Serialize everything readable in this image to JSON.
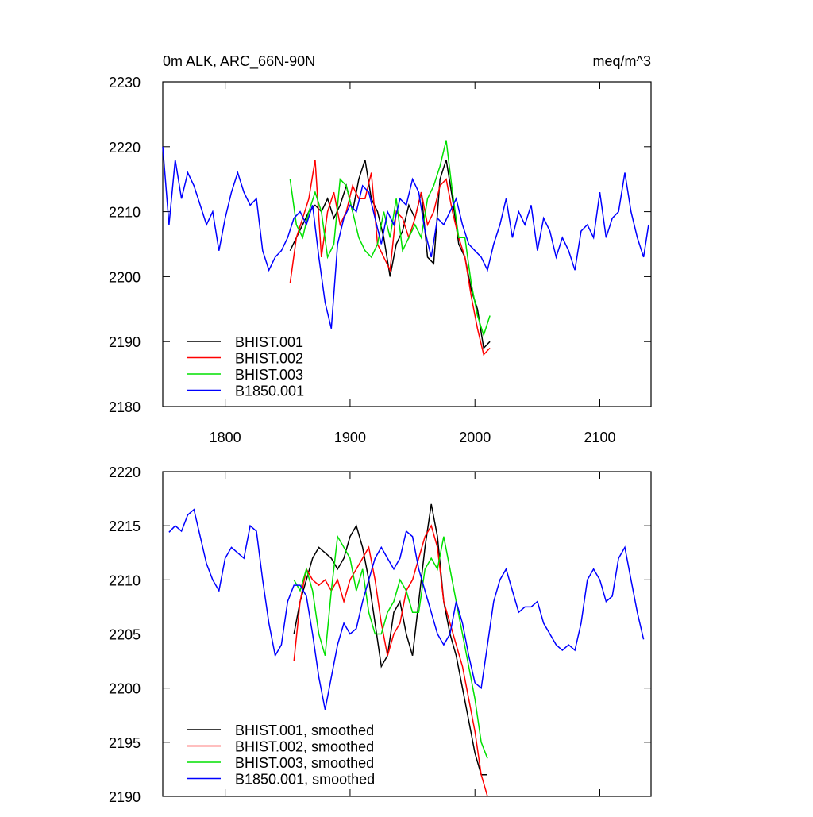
{
  "chart_data": [
    {
      "type": "line",
      "title": "0m ALK, ARC_66N-90N",
      "units": "meq/m^3",
      "xlim": [
        1750,
        2141
      ],
      "xticks": [
        1800,
        1900,
        2000,
        2100
      ],
      "show_xtick_labels": true,
      "ylim": [
        2180,
        2230
      ],
      "yticks": [
        2180,
        2190,
        2200,
        2210,
        2220,
        2230
      ],
      "legend": "lower left",
      "series": [
        {
          "name": "BHIST.001",
          "color": "#000000",
          "x": [
            1852,
            1857,
            1862,
            1867,
            1872,
            1877,
            1882,
            1887,
            1892,
            1897,
            1902,
            1907,
            1912,
            1917,
            1922,
            1927,
            1932,
            1937,
            1942,
            1947,
            1952,
            1957,
            1962,
            1967,
            1972,
            1977,
            1982,
            1987,
            1992,
            1997,
            2002,
            2007,
            2012
          ],
          "values": [
            2204,
            2206,
            2208,
            2210,
            2211,
            2210,
            2212,
            2209,
            2211,
            2214,
            2210,
            2215,
            2218,
            2212,
            2210,
            2206,
            2200,
            2205,
            2207,
            2211,
            2209,
            2213,
            2203,
            2202,
            2215,
            2218,
            2212,
            2205,
            2203,
            2198,
            2195,
            2189,
            2190
          ]
        },
        {
          "name": "BHIST.002",
          "color": "#ff0000",
          "x": [
            1852,
            1857,
            1862,
            1867,
            1872,
            1877,
            1882,
            1887,
            1892,
            1897,
            1902,
            1907,
            1912,
            1917,
            1922,
            1927,
            1932,
            1937,
            1942,
            1947,
            1952,
            1957,
            1962,
            1967,
            1972,
            1977,
            1982,
            1987,
            1992,
            1997,
            2002,
            2007,
            2012
          ],
          "values": [
            2199,
            2206,
            2209,
            2212,
            2218,
            2203,
            2210,
            2213,
            2208,
            2210,
            2214,
            2212,
            2212,
            2216,
            2205,
            2203,
            2201,
            2210,
            2209,
            2206,
            2209,
            2213,
            2208,
            2210,
            2214,
            2215,
            2210,
            2206,
            2203,
            2197,
            2192,
            2188,
            2189
          ]
        },
        {
          "name": "BHIST.003",
          "color": "#00e000",
          "x": [
            1852,
            1857,
            1862,
            1867,
            1872,
            1877,
            1882,
            1887,
            1892,
            1897,
            1902,
            1907,
            1912,
            1917,
            1922,
            1927,
            1932,
            1937,
            1942,
            1947,
            1952,
            1957,
            1962,
            1967,
            1972,
            1977,
            1982,
            1987,
            1992,
            1997,
            2002,
            2007,
            2012
          ],
          "values": [
            2215,
            2208,
            2206,
            2210,
            2213,
            2210,
            2203,
            2205,
            2215,
            2214,
            2210,
            2206,
            2204,
            2203,
            2205,
            2210,
            2206,
            2212,
            2204,
            2206,
            2208,
            2206,
            2212,
            2214,
            2217,
            2221,
            2213,
            2206,
            2206,
            2199,
            2194,
            2191,
            2194
          ]
        },
        {
          "name": "B1850.001",
          "color": "#0000ff",
          "x": [
            1750,
            1755,
            1760,
            1765,
            1770,
            1775,
            1780,
            1785,
            1790,
            1795,
            1800,
            1805,
            1810,
            1815,
            1820,
            1825,
            1830,
            1835,
            1840,
            1845,
            1850,
            1855,
            1860,
            1865,
            1870,
            1875,
            1880,
            1885,
            1890,
            1895,
            1900,
            1905,
            1910,
            1915,
            1920,
            1925,
            1930,
            1935,
            1940,
            1945,
            1950,
            1955,
            1960,
            1965,
            1970,
            1975,
            1980,
            1985,
            1990,
            1995,
            2000,
            2005,
            2010,
            2015,
            2020,
            2025,
            2030,
            2035,
            2040,
            2045,
            2050,
            2055,
            2060,
            2065,
            2070,
            2075,
            2080,
            2085,
            2090,
            2095,
            2100,
            2105,
            2110,
            2115,
            2120,
            2125,
            2130,
            2135,
            2139
          ],
          "values": [
            2220,
            2208,
            2218,
            2212,
            2216,
            2214,
            2211,
            2208,
            2210,
            2204,
            2209,
            2213,
            2216,
            2213,
            2211,
            2212,
            2204,
            2201,
            2203,
            2204,
            2206,
            2209,
            2210,
            2208,
            2211,
            2203,
            2196,
            2192,
            2205,
            2209,
            2211,
            2210,
            2214,
            2213,
            2209,
            2205,
            2210,
            2208,
            2212,
            2211,
            2215,
            2213,
            2207,
            2203,
            2209,
            2208,
            2210,
            2212,
            2208,
            2205,
            2204,
            2203,
            2201,
            2205,
            2208,
            2212,
            2206,
            2210,
            2208,
            2211,
            2204,
            2209,
            2207,
            2203,
            2206,
            2204,
            2201,
            2207,
            2208,
            2206,
            2213,
            2206,
            2209,
            2210,
            2216,
            2210,
            2206,
            2203,
            2208
          ]
        }
      ]
    },
    {
      "type": "line",
      "xlim": [
        1750,
        2141
      ],
      "xticks": [
        1800,
        1900,
        2000,
        2100
      ],
      "show_xtick_labels": false,
      "ylim": [
        2190,
        2220
      ],
      "yticks": [
        2190,
        2195,
        2200,
        2205,
        2210,
        2215,
        2220
      ],
      "legend": "lower left",
      "series": [
        {
          "name": "BHIST.001, smoothed",
          "color": "#000000",
          "x": [
            1855,
            1860,
            1865,
            1870,
            1875,
            1880,
            1885,
            1890,
            1895,
            1900,
            1905,
            1910,
            1915,
            1920,
            1925,
            1930,
            1935,
            1940,
            1945,
            1950,
            1955,
            1960,
            1965,
            1970,
            1975,
            1980,
            1985,
            1990,
            1995,
            2000,
            2005,
            2010
          ],
          "values": [
            2205,
            2208,
            2210,
            2212,
            2213,
            2212.5,
            2212,
            2211,
            2212,
            2214,
            2215,
            2213,
            2210,
            2206,
            2202,
            2203,
            2207,
            2208,
            2205,
            2203,
            2208,
            2213,
            2217,
            2214,
            2208,
            2205,
            2203,
            2200,
            2197,
            2194,
            2192,
            2192
          ]
        },
        {
          "name": "BHIST.002, smoothed",
          "color": "#ff0000",
          "x": [
            1855,
            1860,
            1865,
            1870,
            1875,
            1880,
            1885,
            1890,
            1895,
            1900,
            1905,
            1910,
            1915,
            1920,
            1925,
            1930,
            1935,
            1940,
            1945,
            1950,
            1955,
            1960,
            1965,
            1970,
            1975,
            1980,
            1985,
            1990,
            1995,
            2000,
            2005,
            2010
          ],
          "values": [
            2202.5,
            2208,
            2211,
            2210,
            2209.5,
            2210,
            2209,
            2210,
            2208,
            2210,
            2211,
            2212,
            2213,
            2210,
            2206,
            2203,
            2205,
            2206,
            2209,
            2210,
            2212,
            2214,
            2215,
            2213,
            2208,
            2206,
            2204,
            2202,
            2199,
            2196,
            2192,
            2190
          ]
        },
        {
          "name": "BHIST.003, smoothed",
          "color": "#00e000",
          "x": [
            1855,
            1860,
            1865,
            1870,
            1875,
            1880,
            1885,
            1890,
            1895,
            1900,
            1905,
            1910,
            1915,
            1920,
            1925,
            1930,
            1935,
            1940,
            1945,
            1950,
            1955,
            1960,
            1965,
            1970,
            1975,
            1980,
            1985,
            1990,
            1995,
            2000,
            2005,
            2010
          ],
          "values": [
            2210,
            2209,
            2211,
            2209,
            2205,
            2203,
            2209,
            2214,
            2213,
            2212,
            2209,
            2211,
            2207,
            2205,
            2205,
            2207,
            2208,
            2210,
            2209,
            2207,
            2207,
            2211,
            2212,
            2211,
            2214,
            2211,
            2208,
            2205,
            2202,
            2199,
            2195,
            2193.5
          ]
        },
        {
          "name": "B1850.001, smoothed",
          "color": "#0000ff",
          "x": [
            1755,
            1760,
            1765,
            1770,
            1775,
            1780,
            1785,
            1790,
            1795,
            1800,
            1805,
            1810,
            1815,
            1820,
            1825,
            1830,
            1835,
            1840,
            1845,
            1850,
            1855,
            1860,
            1865,
            1870,
            1875,
            1880,
            1885,
            1890,
            1895,
            1900,
            1905,
            1910,
            1915,
            1920,
            1925,
            1930,
            1935,
            1940,
            1945,
            1950,
            1955,
            1960,
            1965,
            1970,
            1975,
            1980,
            1985,
            1990,
            1995,
            2000,
            2005,
            2010,
            2015,
            2020,
            2025,
            2030,
            2035,
            2040,
            2045,
            2050,
            2055,
            2060,
            2065,
            2070,
            2075,
            2080,
            2085,
            2090,
            2095,
            2100,
            2105,
            2110,
            2115,
            2120,
            2125,
            2130,
            2135
          ],
          "values": [
            2214.4,
            2215,
            2214.5,
            2216,
            2216.5,
            2214,
            2211.5,
            2210,
            2209,
            2212,
            2213,
            2212.5,
            2212,
            2215,
            2214.5,
            2210,
            2206,
            2203,
            2204,
            2208,
            2209.5,
            2209.5,
            2208.5,
            2205,
            2201,
            2198,
            2201,
            2204,
            2206,
            2205,
            2205.5,
            2208,
            2210,
            2212,
            2213,
            2212,
            2211,
            2212,
            2214.5,
            2214,
            2211,
            2209,
            2207,
            2205,
            2204,
            2205,
            2208,
            2206,
            2203,
            2200.5,
            2200,
            2204,
            2208,
            2210,
            2211,
            2209,
            2207,
            2207.5,
            2207.5,
            2208,
            2206,
            2205,
            2204,
            2203.5,
            2204,
            2203.5,
            2206,
            2210,
            2211,
            2210,
            2208,
            2208.5,
            2212,
            2213,
            2210,
            2207,
            2204.5
          ]
        }
      ]
    }
  ]
}
